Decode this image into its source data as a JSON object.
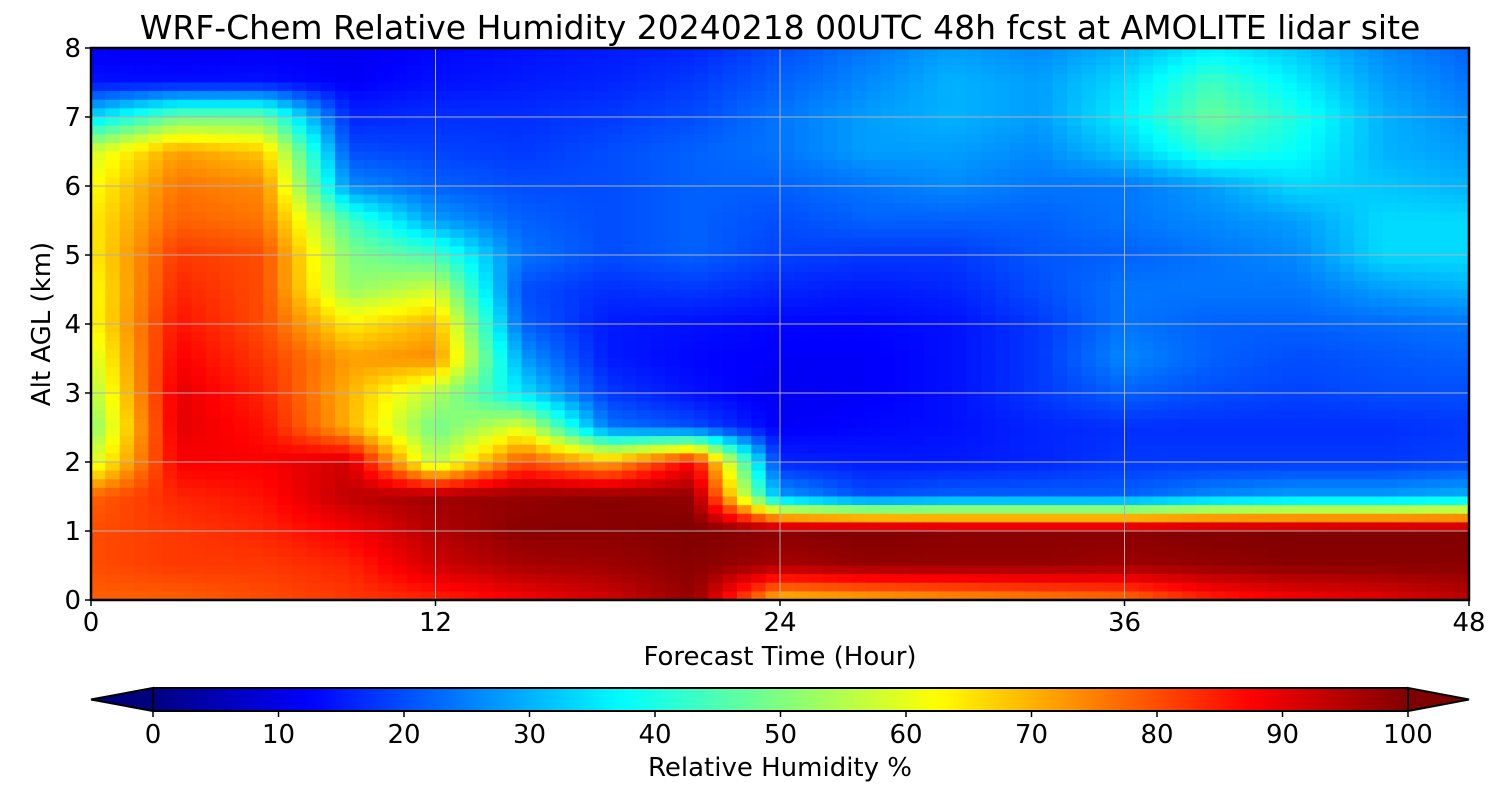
{
  "chart_data": {
    "type": "heatmap",
    "title": "WRF-Chem Relative Humidity 20240218 00UTC 48h fcst at AMOLITE lidar site",
    "xlabel": "Forecast Time (Hour)",
    "ylabel": "Alt AGL (km)",
    "xlim": [
      0,
      48
    ],
    "ylim": [
      0,
      8
    ],
    "x_ticks": [
      "0",
      "12",
      "24",
      "36",
      "48"
    ],
    "y_ticks": [
      "0",
      "1",
      "2",
      "3",
      "4",
      "5",
      "6",
      "7",
      "8"
    ],
    "grid": true,
    "colormap": "jet",
    "colorbar": {
      "label": "Relative Humidity %",
      "range": [
        0,
        100
      ],
      "ticks": [
        "0",
        "10",
        "20",
        "30",
        "40",
        "50",
        "60",
        "70",
        "80",
        "90",
        "100"
      ],
      "extend": "both",
      "orientation": "horizontal"
    },
    "hours": [
      0,
      3,
      6,
      9,
      12,
      15,
      18,
      21,
      24,
      27,
      30,
      33,
      36,
      39,
      42,
      45,
      48
    ],
    "altitudes_km": [
      0,
      0.5,
      1,
      1.5,
      2,
      2.5,
      3,
      3.5,
      4,
      4.5,
      5,
      5.5,
      6,
      6.5,
      7,
      7.5,
      8
    ],
    "values": [
      [
        78,
        78,
        80,
        82,
        84,
        88,
        92,
        98,
        68,
        70,
        72,
        74,
        76,
        84,
        88,
        90,
        94
      ],
      [
        80,
        82,
        82,
        84,
        92,
        96,
        97,
        99,
        96,
        98,
        98,
        98,
        97,
        98,
        99,
        99,
        99
      ],
      [
        80,
        82,
        84,
        88,
        95,
        99,
        99,
        100,
        99,
        100,
        99,
        99,
        99,
        100,
        100,
        100,
        100
      ],
      [
        78,
        84,
        86,
        94,
        97,
        98,
        99,
        98,
        28,
        20,
        22,
        22,
        22,
        26,
        28,
        28,
        30
      ],
      [
        58,
        88,
        88,
        92,
        55,
        80,
        70,
        88,
        16,
        15,
        15,
        16,
        18,
        18,
        18,
        18,
        19
      ],
      [
        50,
        90,
        86,
        70,
        48,
        60,
        24,
        20,
        12,
        13,
        14,
        16,
        17,
        17,
        17,
        17,
        18
      ],
      [
        54,
        90,
        84,
        70,
        55,
        35,
        18,
        14,
        11,
        12,
        14,
        18,
        22,
        20,
        19,
        20,
        20
      ],
      [
        58,
        88,
        82,
        72,
        74,
        28,
        15,
        13,
        12,
        12,
        14,
        18,
        26,
        22,
        20,
        21,
        22
      ],
      [
        62,
        86,
        80,
        64,
        70,
        22,
        15,
        14,
        13,
        13,
        14,
        18,
        24,
        22,
        22,
        23,
        24
      ],
      [
        62,
        84,
        80,
        52,
        58,
        20,
        17,
        18,
        16,
        15,
        16,
        20,
        24,
        24,
        24,
        28,
        30
      ],
      [
        64,
        82,
        80,
        50,
        44,
        24,
        20,
        22,
        19,
        18,
        18,
        21,
        22,
        24,
        26,
        34,
        34
      ],
      [
        64,
        78,
        76,
        44,
        28,
        22,
        20,
        22,
        20,
        22,
        22,
        22,
        24,
        26,
        28,
        34,
        34
      ],
      [
        62,
        76,
        74,
        26,
        22,
        20,
        20,
        22,
        22,
        24,
        26,
        24,
        24,
        28,
        34,
        32,
        30
      ],
      [
        58,
        72,
        68,
        20,
        19,
        18,
        20,
        22,
        24,
        28,
        28,
        26,
        32,
        42,
        38,
        30,
        28
      ],
      [
        34,
        48,
        48,
        16,
        17,
        17,
        18,
        20,
        24,
        28,
        30,
        28,
        36,
        48,
        40,
        30,
        26
      ],
      [
        14,
        14,
        14,
        12,
        14,
        15,
        16,
        18,
        22,
        26,
        30,
        28,
        34,
        44,
        36,
        28,
        24
      ],
      [
        12,
        11,
        12,
        11,
        13,
        14,
        15,
        16,
        20,
        24,
        28,
        26,
        30,
        36,
        32,
        26,
        22
      ]
    ]
  }
}
